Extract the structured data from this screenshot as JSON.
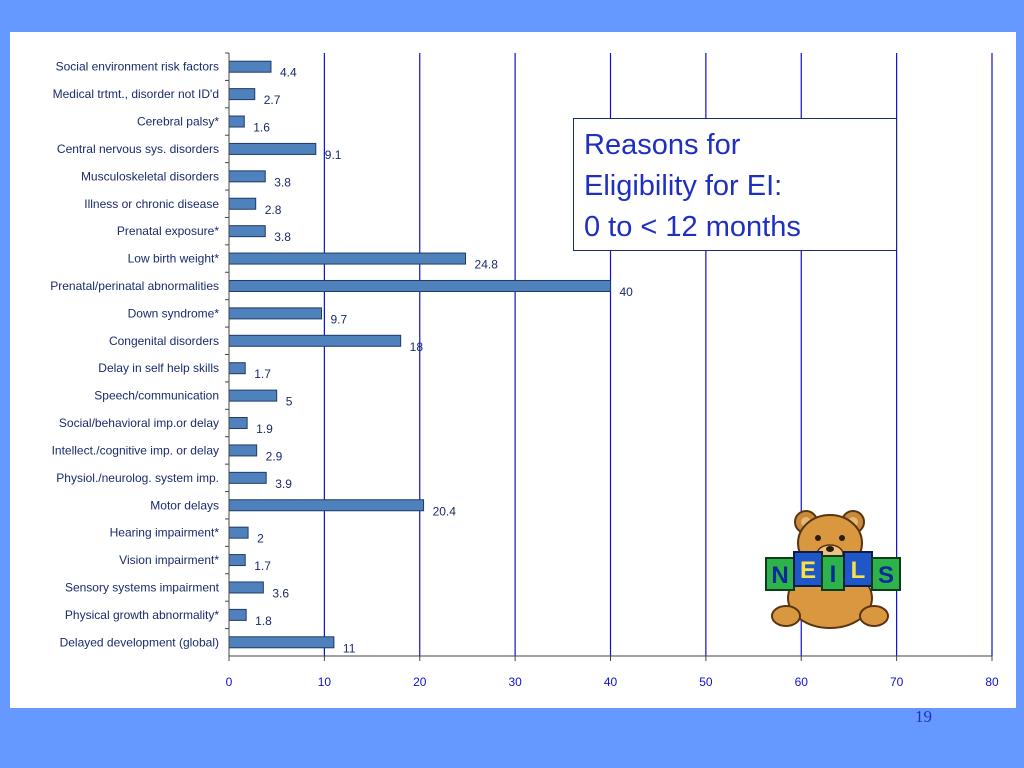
{
  "chart_data": {
    "type": "bar",
    "orientation": "horizontal",
    "title": "",
    "categories": [
      "Social environment risk factors",
      "Medical trtmt., disorder not ID'd",
      "Cerebral palsy*",
      "Central nervous sys. disorders",
      "Musculoskeletal disorders",
      "Illness or chronic disease",
      "Prenatal exposure*",
      "Low birth weight*",
      "Prenatal/perinatal abnormalities",
      "Down syndrome*",
      "Congenital disorders",
      "Delay in self help skills",
      "Speech/communication",
      "Social/behavioral imp.or delay",
      "Intellect./cognitive imp. or delay",
      "Physiol./neurolog. system imp.",
      "Motor delays",
      "Hearing impairment*",
      "Vision impairment*",
      "Sensory systems impairment",
      "Physical growth abnormality*",
      "Delayed development (global)"
    ],
    "values": [
      4.4,
      2.7,
      1.6,
      9.1,
      3.8,
      2.8,
      3.8,
      24.8,
      40,
      9.7,
      18,
      1.7,
      5,
      1.9,
      2.9,
      3.9,
      20.4,
      2,
      1.7,
      3.6,
      1.8,
      11
    ],
    "value_labels": [
      "4.4",
      "2.7",
      "1.6",
      "9.1",
      "3.8",
      "2.8",
      "3.8",
      "24.8",
      "40",
      "9.7",
      "18",
      "1.7",
      "5",
      "1.9",
      "2.9",
      "3.9",
      "20.4",
      "2",
      "1.7",
      "3.6",
      "1.8",
      "11"
    ],
    "xlim": [
      0,
      80
    ],
    "x_ticks": [
      0,
      10,
      20,
      30,
      40,
      50,
      60,
      70,
      80
    ],
    "x_tick_labels": [
      "0",
      "10",
      "20",
      "30",
      "40",
      "50",
      "60",
      "70",
      "80"
    ],
    "xlabel": "",
    "ylabel": "",
    "grid": "vertical",
    "legend": "none"
  },
  "slide": {
    "title_lines": [
      "Reasons for",
      "Eligibility for EI:",
      "0 to < 12 months"
    ],
    "page_number": "19",
    "logo_text": "NEILS"
  },
  "colors": {
    "background": "#6699FF",
    "panel": "#FFFFFF",
    "bar_fill": "#4F81BD",
    "bar_stroke": "#1F3B66",
    "gridline": "#1010CC",
    "title_text": "#1F2FBF",
    "label_text": "#1A2A6C"
  }
}
